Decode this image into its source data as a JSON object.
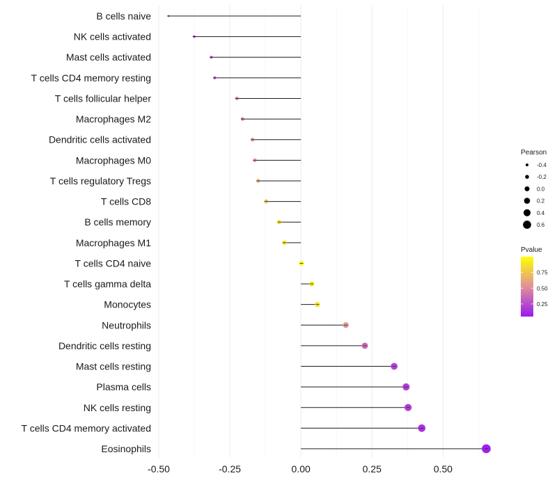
{
  "chart_data": {
    "type": "lollipop",
    "xlim": [
      -0.5,
      0.7
    ],
    "xticks": [
      -0.5,
      -0.25,
      0.0,
      0.25,
      0.5
    ],
    "xtick_labels": [
      "-0.50",
      "-0.25",
      "0.00",
      "0.25",
      "0.50"
    ],
    "grid": true,
    "categories": [
      "B cells naive",
      "NK cells activated",
      "Mast cells activated",
      "T cells CD4 memory resting",
      "T cells follicular helper",
      "Macrophages M2",
      "Dendritic cells activated",
      "Macrophages M0",
      "T cells regulatory  Tregs ",
      "T cells CD8",
      "B cells memory",
      "Macrophages M1",
      "T cells CD4 naive",
      "T cells gamma delta",
      "Monocytes",
      "Neutrophils",
      "Dendritic cells resting",
      "Mast cells resting",
      "Plasma cells",
      "NK cells resting",
      "T cells CD4 memory activated",
      "Eosinophils"
    ],
    "pearson": [
      -0.465,
      -0.375,
      -0.315,
      -0.303,
      -0.225,
      -0.205,
      -0.17,
      -0.162,
      -0.15,
      -0.122,
      -0.076,
      -0.058,
      0.002,
      0.038,
      0.058,
      0.158,
      0.225,
      0.328,
      0.37,
      0.377,
      0.425,
      0.652
    ],
    "pvalue": [
      0.15,
      0.12,
      0.25,
      0.28,
      0.45,
      0.42,
      0.55,
      0.55,
      0.63,
      0.72,
      0.85,
      0.88,
      0.98,
      0.9,
      0.87,
      0.55,
      0.37,
      0.22,
      0.2,
      0.2,
      0.15,
      0.08
    ],
    "legend_pearson": {
      "title": "Pearson",
      "values": [
        -0.4,
        -0.2,
        0.0,
        0.2,
        0.4,
        0.6
      ],
      "labels": [
        "-0.4",
        "-0.2",
        "0.0",
        "0.2",
        "0.4",
        "0.6"
      ]
    },
    "legend_pvalue": {
      "title": "Pvalue",
      "range": [
        0.05,
        1.0
      ],
      "ticks": [
        0.75,
        0.5,
        0.25
      ],
      "labels": [
        "0.75",
        "0.50",
        "0.25"
      ],
      "color_low": "#9A1AF0",
      "color_mid": "#E0909A",
      "color_high": "#FFFF00"
    },
    "legend_position": "right"
  }
}
